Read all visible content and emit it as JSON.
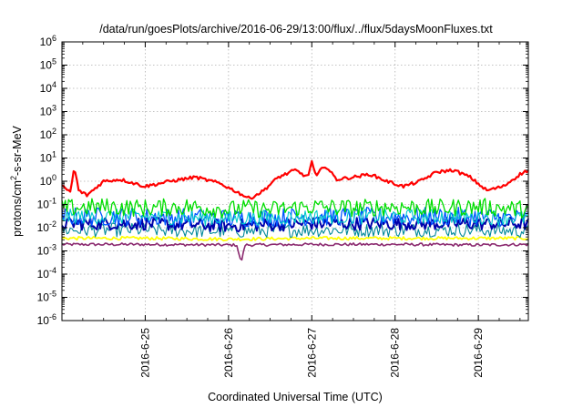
{
  "chart_data": {
    "type": "line",
    "title": "/data/run/goesPlots/archive/2016-06-29/13:00/flux/../flux/5daysMoonFluxes.txt",
    "xlabel": "Coordinated Universal Time (UTC)",
    "ylabel": "protons/cm²-s-sr-MeV",
    "ylabel_parts": {
      "pre": "protons/cm",
      "sup": "2",
      "post": "-s-sr-MeV"
    },
    "x_ticks": [
      "2016-6-25",
      "2016-6-26",
      "2016-6-27",
      "2016-6-28",
      "2016-6-29"
    ],
    "x_range_days": [
      0.0,
      5.6
    ],
    "x_tick_positions_days": [
      1,
      2,
      3,
      4,
      5
    ],
    "y_scale": "log",
    "y_ticks_exp": [
      6,
      5,
      4,
      3,
      2,
      1,
      0,
      -1,
      -2,
      -3,
      -4,
      -5,
      -6
    ],
    "ylim": [
      1e-06,
      1000000.0
    ],
    "grid": true,
    "legend": "none",
    "series": [
      {
        "color": "#ff0000",
        "width": 2.2,
        "noise": 0.07,
        "x": [
          0.0,
          0.1,
          0.15,
          0.2,
          0.3,
          0.5,
          0.7,
          1.0,
          1.3,
          1.6,
          1.9,
          2.1,
          2.25,
          2.4,
          2.6,
          2.8,
          2.95,
          3.0,
          3.05,
          3.15,
          3.3,
          3.5,
          3.7,
          3.9,
          4.1,
          4.3,
          4.5,
          4.7,
          4.9,
          5.1,
          5.3,
          5.5,
          5.6
        ],
        "y": [
          0.6,
          0.35,
          4.0,
          0.4,
          0.25,
          1.0,
          1.2,
          0.6,
          1.0,
          1.5,
          0.8,
          0.35,
          0.18,
          0.35,
          1.5,
          3.0,
          1.5,
          7.0,
          1.5,
          5.0,
          1.2,
          1.5,
          2.0,
          1.0,
          0.6,
          1.0,
          2.5,
          3.0,
          1.5,
          0.4,
          0.6,
          2.0,
          3.0
        ]
      },
      {
        "color": "#00dd00",
        "width": 1.3,
        "noise": 0.38,
        "x": [
          0.0,
          0.5,
          1.0,
          1.5,
          2.0,
          2.2,
          2.5,
          3.0,
          3.5,
          4.0,
          4.5,
          5.0,
          5.6
        ],
        "y": [
          0.07,
          0.08,
          0.07,
          0.08,
          0.06,
          0.07,
          0.06,
          0.08,
          0.07,
          0.08,
          0.07,
          0.08,
          0.06
        ]
      },
      {
        "color": "#00cccc",
        "width": 1.1,
        "noise": 0.33,
        "x": [
          0.0,
          1.0,
          2.0,
          3.0,
          4.0,
          5.0,
          5.6
        ],
        "y": [
          0.03,
          0.03,
          0.025,
          0.03,
          0.03,
          0.03,
          0.025
        ]
      },
      {
        "color": "#0055ff",
        "width": 1.3,
        "noise": 0.4,
        "x": [
          0.0,
          1.0,
          2.0,
          3.0,
          4.0,
          5.0,
          5.6
        ],
        "y": [
          0.03,
          0.03,
          0.025,
          0.03,
          0.03,
          0.03,
          0.025
        ]
      },
      {
        "color": "#0000aa",
        "width": 2.0,
        "noise": 0.28,
        "x": [
          0.0,
          1.0,
          2.0,
          3.0,
          4.0,
          5.0,
          5.6
        ],
        "y": [
          0.015,
          0.015,
          0.012,
          0.015,
          0.015,
          0.015,
          0.015
        ]
      },
      {
        "color": "#008899",
        "width": 1.1,
        "noise": 0.3,
        "x": [
          0.0,
          1.0,
          2.0,
          3.0,
          4.0,
          5.0,
          5.6
        ],
        "y": [
          0.008,
          0.008,
          0.007,
          0.008,
          0.008,
          0.008,
          0.007
        ]
      },
      {
        "color": "#ffff00",
        "width": 1.8,
        "noise": 0.07,
        "x": [
          0.0,
          1.0,
          2.0,
          3.0,
          4.0,
          5.0,
          5.6
        ],
        "y": [
          0.0035,
          0.0035,
          0.0032,
          0.0035,
          0.0035,
          0.0035,
          0.0035
        ]
      },
      {
        "color": "#8b2a6f",
        "width": 1.6,
        "noise": 0.06,
        "x": [
          0.0,
          1.0,
          2.0,
          2.1,
          2.15,
          2.2,
          3.0,
          4.0,
          5.0,
          5.6
        ],
        "y": [
          0.0019,
          0.0019,
          0.0018,
          0.0018,
          0.0003,
          0.0018,
          0.0019,
          0.0019,
          0.0018,
          0.0019
        ]
      }
    ]
  }
}
